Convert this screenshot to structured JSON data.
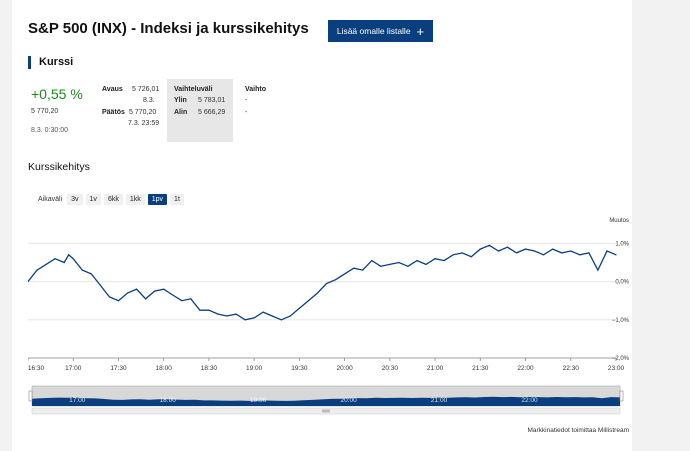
{
  "header": {
    "title": "S&P 500 (INX) - Indeksi ja kurssikehitys",
    "add_button": "Lisää omalle listalle",
    "add_icon": "+"
  },
  "quote": {
    "section_title": "Kurssi",
    "change": "+0,55 %",
    "price": "5 770,20",
    "time": "8.3. 0:30:00",
    "avaus_label": "Avaus",
    "avaus_value": "5 726,01",
    "avaus_date": "8.3.",
    "paatos_label": "Päätös",
    "paatos_value": "5 770,20",
    "paatos_date": "7.3. 23:59",
    "range_header": "Vaihteluväli",
    "ylin_label": "Ylin",
    "ylin_value": "5 783,01",
    "alin_label": "Alin",
    "alin_value": "5 666,29",
    "vaihto_header": "Vaihto",
    "vaihto_value1": "-",
    "vaihto_value2": "-"
  },
  "chart_section": {
    "title": "Kurssikehitys",
    "range_label": "Aikaväli",
    "ranges": [
      "3v",
      "1v",
      "6kk",
      "1kk",
      "1pv",
      "1t"
    ],
    "active_range": "1pv"
  },
  "footer": "Markkinatiedot toimittaa Millistream",
  "colors": {
    "accent": "#0a3f7f",
    "positive": "#1e8a1e"
  },
  "chart_data": {
    "type": "line",
    "title": "Kurssikehitys",
    "ylabel": "Muutos",
    "x_ticks": [
      "16:30",
      "17:00",
      "17:30",
      "18:00",
      "18:30",
      "19:00",
      "19:30",
      "20:00",
      "20:30",
      "21:00",
      "21:30",
      "22:00",
      "22:30",
      "23:00"
    ],
    "y_ticks": [
      "1,0%",
      "0,0%",
      "−1,0%",
      "−2,0%"
    ],
    "y_tick_values": [
      1,
      0,
      -1,
      -2
    ],
    "ylim": [
      -2,
      1.35
    ],
    "x_range_hours": [
      16.5,
      23.0
    ],
    "series": [
      {
        "name": "S&P 500",
        "x": [
          16.5,
          16.6,
          16.7,
          16.8,
          16.9,
          16.95,
          17.0,
          17.1,
          17.2,
          17.3,
          17.4,
          17.5,
          17.6,
          17.7,
          17.8,
          17.9,
          18.0,
          18.1,
          18.2,
          18.3,
          18.4,
          18.5,
          18.6,
          18.7,
          18.8,
          18.9,
          19.0,
          19.1,
          19.2,
          19.3,
          19.4,
          19.5,
          19.6,
          19.7,
          19.8,
          19.9,
          20.0,
          20.1,
          20.2,
          20.3,
          20.4,
          20.5,
          20.6,
          20.7,
          20.8,
          20.9,
          21.0,
          21.1,
          21.2,
          21.3,
          21.4,
          21.5,
          21.6,
          21.7,
          21.8,
          21.9,
          22.0,
          22.1,
          22.2,
          22.3,
          22.4,
          22.5,
          22.6,
          22.7,
          22.8,
          22.9,
          23.0
        ],
        "values": [
          0.0,
          0.3,
          0.45,
          0.6,
          0.5,
          0.7,
          0.6,
          0.3,
          0.2,
          -0.1,
          -0.4,
          -0.5,
          -0.3,
          -0.2,
          -0.45,
          -0.25,
          -0.2,
          -0.35,
          -0.5,
          -0.45,
          -0.75,
          -0.75,
          -0.85,
          -0.9,
          -0.85,
          -1.0,
          -0.95,
          -0.8,
          -0.9,
          -1.0,
          -0.9,
          -0.7,
          -0.5,
          -0.3,
          -0.05,
          0.05,
          0.2,
          0.35,
          0.3,
          0.55,
          0.4,
          0.45,
          0.5,
          0.4,
          0.55,
          0.45,
          0.6,
          0.55,
          0.7,
          0.75,
          0.65,
          0.85,
          0.95,
          0.8,
          0.9,
          0.75,
          0.85,
          0.8,
          0.7,
          0.85,
          0.75,
          0.8,
          0.7,
          0.75,
          0.3,
          0.8,
          0.7
        ]
      }
    ],
    "navigator_ticks": [
      "17:00",
      "18:00",
      "19:00",
      "20:00",
      "21:00",
      "22:00"
    ]
  }
}
